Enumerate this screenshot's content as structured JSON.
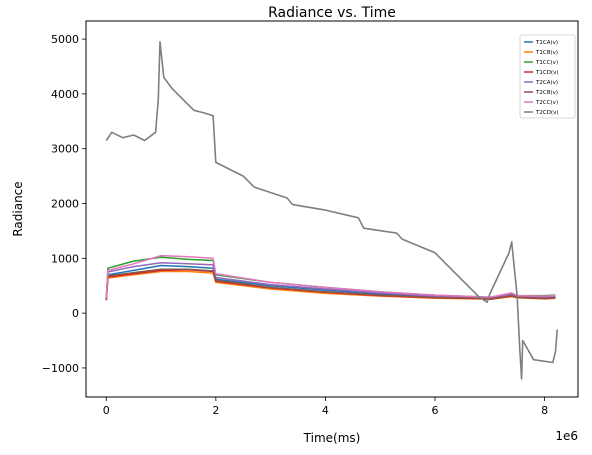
{
  "chart_data": {
    "type": "line",
    "title": "Radiance vs. Time",
    "xlabel": "Time(ms)",
    "ylabel": "Radiance",
    "x_offset_label": "1e6",
    "xlim": [
      -370000,
      8610000
    ],
    "ylim": [
      -1530,
      5330
    ],
    "xticks": [
      0,
      2000000,
      4000000,
      6000000,
      8000000
    ],
    "xtick_labels": [
      "0",
      "2",
      "4",
      "6",
      "8"
    ],
    "yticks": [
      -1000,
      0,
      1000,
      2000,
      3000,
      4000,
      5000
    ],
    "ytick_labels": [
      "−1000",
      "0",
      "1000",
      "2000",
      "3000",
      "4000",
      "5000"
    ],
    "legend_position": "upper right",
    "grid": false,
    "series": [
      {
        "name": "T1CA(v)",
        "color": "#1f77b4",
        "x": [
          0,
          30000,
          500000,
          1000000,
          1500000,
          1950000,
          2000000,
          3000000,
          4000000,
          5000000,
          6000000,
          6800000,
          7000000,
          7400000,
          7500000,
          8000000,
          8200000
        ],
        "y": [
          250,
          700,
          780,
          870,
          850,
          820,
          620,
          500,
          420,
          350,
          300,
          280,
          270,
          330,
          300,
          290,
          300
        ]
      },
      {
        "name": "T1CB(v)",
        "color": "#ff7f0e",
        "x": [
          0,
          30000,
          500000,
          1000000,
          1500000,
          1950000,
          2000000,
          3000000,
          4000000,
          5000000,
          6000000,
          6800000,
          7000000,
          7400000,
          7500000,
          8000000,
          8200000
        ],
        "y": [
          230,
          640,
          700,
          760,
          760,
          730,
          560,
          440,
          360,
          310,
          270,
          260,
          250,
          300,
          280,
          260,
          270
        ]
      },
      {
        "name": "T1CC(v)",
        "color": "#2ca02c",
        "x": [
          0,
          30000,
          500000,
          1000000,
          1500000,
          1950000,
          2000000,
          3000000,
          4000000,
          5000000,
          6000000,
          6800000,
          7000000,
          7400000,
          7500000,
          8000000,
          8200000
        ],
        "y": [
          280,
          820,
          950,
          1020,
          980,
          960,
          700,
          560,
          470,
          390,
          330,
          300,
          290,
          350,
          320,
          320,
          330
        ]
      },
      {
        "name": "T1CD(v)",
        "color": "#d62728",
        "x": [
          0,
          30000,
          500000,
          1000000,
          1500000,
          1950000,
          2000000,
          3000000,
          4000000,
          5000000,
          6000000,
          6800000,
          7000000,
          7400000,
          7500000,
          8000000,
          8200000
        ],
        "y": [
          240,
          660,
          720,
          780,
          790,
          760,
          580,
          460,
          380,
          320,
          280,
          265,
          255,
          310,
          285,
          265,
          275
        ]
      },
      {
        "name": "T2CA(v)",
        "color": "#9467bd",
        "x": [
          0,
          30000,
          500000,
          1000000,
          1500000,
          1950000,
          2000000,
          3000000,
          4000000,
          5000000,
          6000000,
          6800000,
          7000000,
          7400000,
          7500000,
          8000000,
          8200000
        ],
        "y": [
          260,
          750,
          850,
          920,
          900,
          880,
          650,
          520,
          440,
          370,
          310,
          290,
          280,
          340,
          300,
          300,
          310
        ]
      },
      {
        "name": "T2CB(v)",
        "color": "#8c564b",
        "x": [
          0,
          30000,
          500000,
          1000000,
          1500000,
          1950000,
          2000000,
          3000000,
          4000000,
          5000000,
          6000000,
          6800000,
          7000000,
          7400000,
          7500000,
          8000000,
          8200000
        ],
        "y": [
          240,
          680,
          740,
          800,
          800,
          770,
          600,
          470,
          390,
          330,
          285,
          270,
          260,
          320,
          290,
          270,
          280
        ]
      },
      {
        "name": "T2CC(v)",
        "color": "#e377c2",
        "x": [
          0,
          30000,
          500000,
          1000000,
          1500000,
          1950000,
          2000000,
          3000000,
          4000000,
          5000000,
          6000000,
          6800000,
          7000000,
          7400000,
          7500000,
          8000000,
          8200000
        ],
        "y": [
          270,
          780,
          900,
          1050,
          1030,
          1000,
          720,
          560,
          470,
          390,
          330,
          300,
          290,
          370,
          320,
          310,
          320
        ]
      },
      {
        "name": "T2CD(v)",
        "color": "#7f7f7f",
        "x": [
          0,
          100000,
          300000,
          500000,
          700000,
          900000,
          950000,
          980000,
          1050000,
          1200000,
          1400000,
          1600000,
          1800000,
          1950000,
          2000000,
          2500000,
          2700000,
          3300000,
          3400000,
          4000000,
          4600000,
          4700000,
          5300000,
          5400000,
          6000000,
          6300000,
          6800000,
          6950000,
          7000000,
          7350000,
          7400000,
          7500000,
          7550000,
          7580000,
          7600000,
          7800000,
          8150000,
          8200000,
          8230000
        ],
        "y": [
          3150,
          3300,
          3200,
          3250,
          3150,
          3300,
          3900,
          4950,
          4300,
          4100,
          3900,
          3700,
          3650,
          3600,
          2750,
          2500,
          2300,
          2100,
          1980,
          1880,
          1740,
          1550,
          1460,
          1350,
          1100,
          800,
          300,
          200,
          350,
          1100,
          1300,
          300,
          -700,
          -1200,
          -500,
          -850,
          -900,
          -700,
          -300
        ]
      }
    ]
  }
}
